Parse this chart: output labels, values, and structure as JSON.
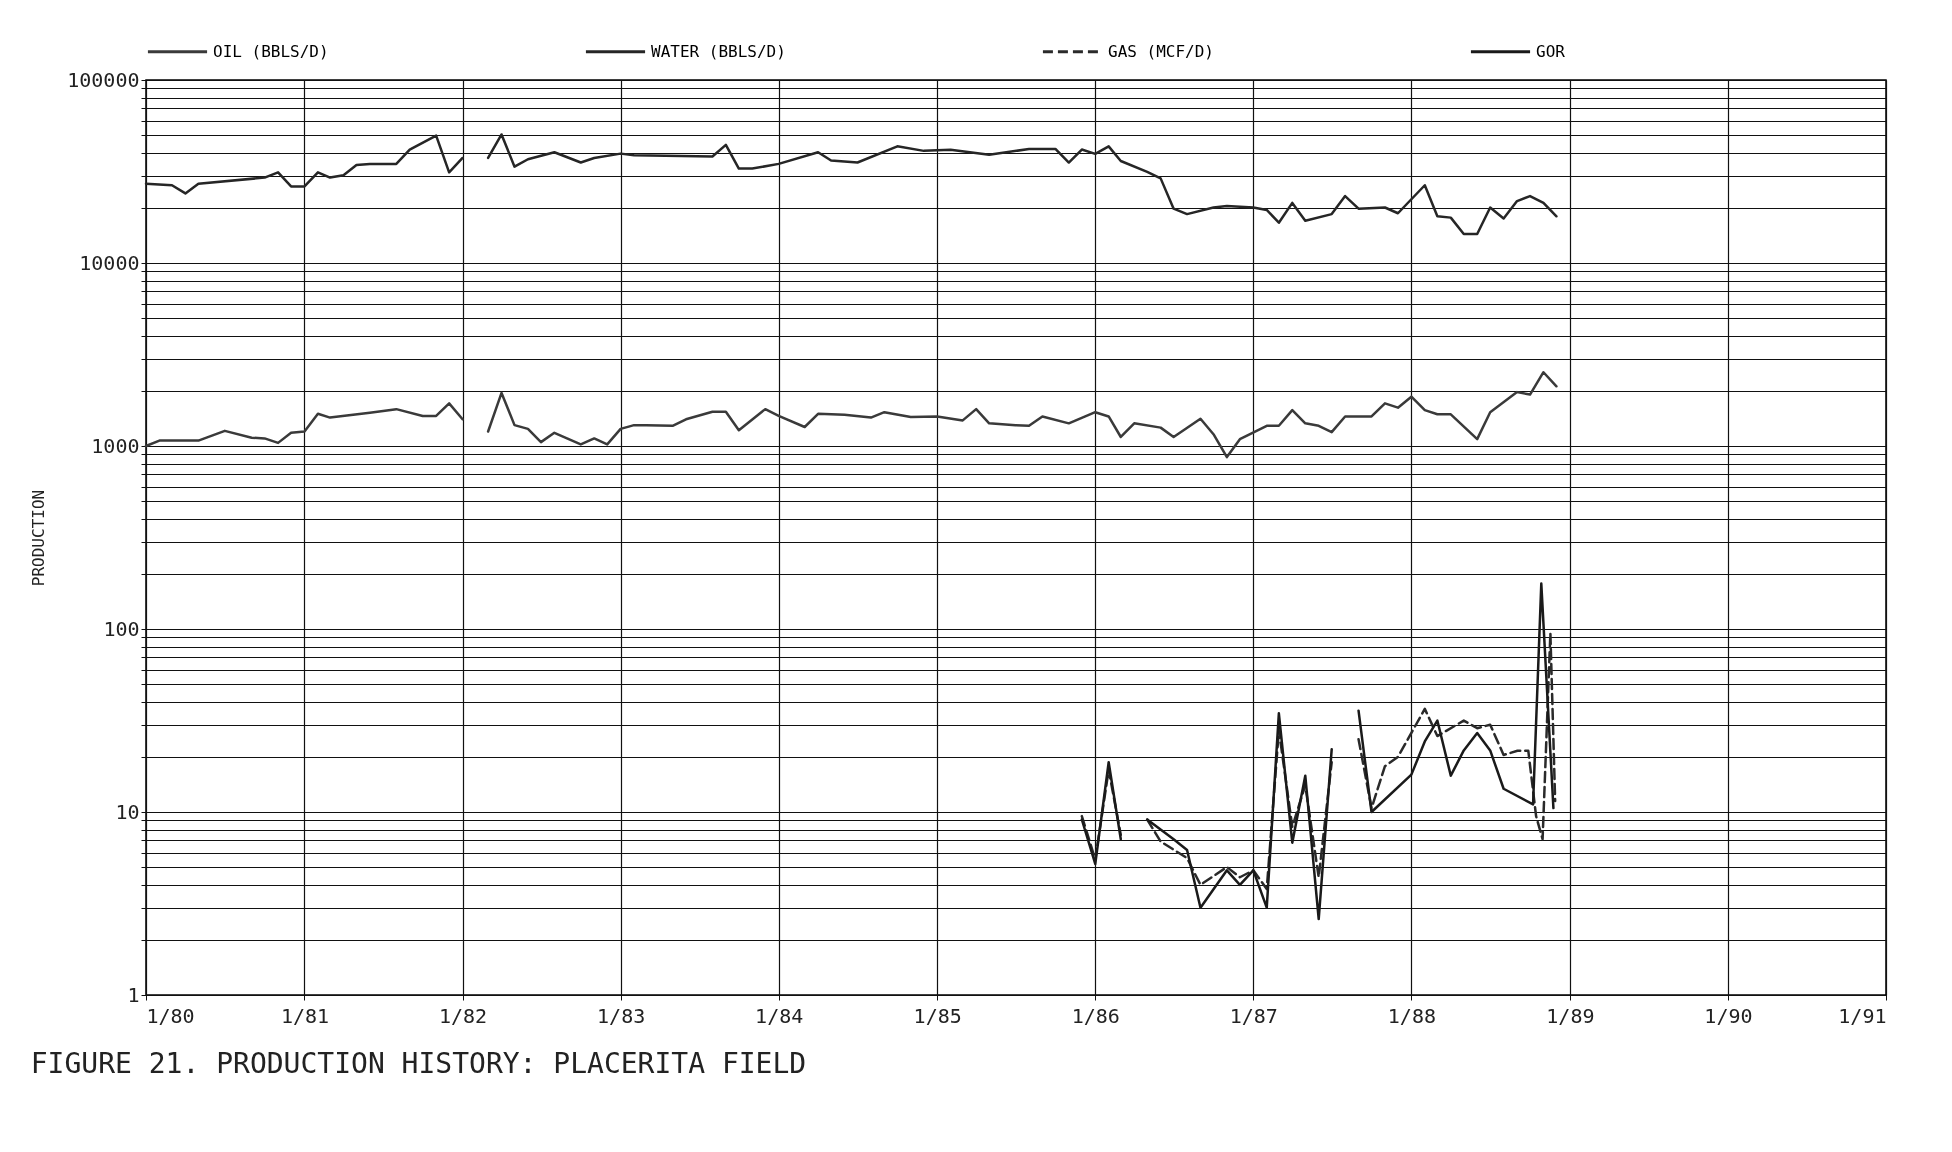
{
  "chart_data": {
    "type": "line",
    "title": "FIGURE 21.  PRODUCTION HISTORY:  PLACERITA FIELD",
    "ylabel": "PRODUCTION",
    "log": true,
    "grid": true,
    "legend": "top",
    "xlim": [
      "1980-01",
      "1991-01"
    ],
    "ylim": [
      1,
      100000
    ],
    "xticks": [
      {
        "value": "1980-01",
        "label": "1/80"
      },
      {
        "value": "1981-01",
        "label": "1/81"
      },
      {
        "value": "1982-01",
        "label": "1/82"
      },
      {
        "value": "1983-01",
        "label": "1/83"
      },
      {
        "value": "1984-01",
        "label": "1/84"
      },
      {
        "value": "1985-01",
        "label": "1/85"
      },
      {
        "value": "1986-01",
        "label": "1/86"
      },
      {
        "value": "1987-01",
        "label": "1/87"
      },
      {
        "value": "1988-01",
        "label": "1/88"
      },
      {
        "value": "1989-01",
        "label": "1/89"
      },
      {
        "value": "1990-01",
        "label": "1/90"
      },
      {
        "value": "1991-01",
        "label": "1/91"
      }
    ],
    "yticks": [
      1,
      {
        "value": 2,
        "label": null
      },
      {
        "value": 3,
        "label": null
      },
      {
        "value": 4,
        "label": null
      },
      {
        "value": 5,
        "label": null
      },
      {
        "value": 6,
        "label": null
      },
      {
        "value": 7,
        "label": null
      },
      {
        "value": 8,
        "label": null
      },
      {
        "value": 9,
        "label": null
      },
      10,
      {
        "value": 20,
        "label": null
      },
      {
        "value": 30,
        "label": null
      },
      {
        "value": 40,
        "label": null
      },
      {
        "value": 50,
        "label": null
      },
      {
        "value": 60,
        "label": null
      },
      {
        "value": 70,
        "label": null
      },
      {
        "value": 80,
        "label": null
      },
      {
        "value": 90,
        "label": null
      },
      100,
      {
        "value": 200,
        "label": null
      },
      {
        "value": 300,
        "label": null
      },
      {
        "value": 400,
        "label": null
      },
      {
        "value": 500,
        "label": null
      },
      {
        "value": 600,
        "label": null
      },
      {
        "value": 700,
        "label": null
      },
      {
        "value": 800,
        "label": null
      },
      {
        "value": 900,
        "label": null
      },
      1000,
      {
        "value": 2000,
        "label": null
      },
      {
        "value": 3000,
        "label": null
      },
      {
        "value": 4000,
        "label": null
      },
      {
        "value": 5000,
        "label": null
      },
      {
        "value": 6000,
        "label": null
      },
      {
        "value": 7000,
        "label": null
      },
      {
        "value": 8000,
        "label": null
      },
      {
        "value": 9000,
        "label": null
      },
      10000,
      {
        "value": 20000,
        "label": null
      },
      {
        "value": 30000,
        "label": null
      },
      {
        "value": 40000,
        "label": null
      },
      {
        "value": 50000,
        "label": null
      },
      {
        "value": 60000,
        "label": null
      },
      {
        "value": 70000,
        "label": null
      },
      {
        "value": 80000,
        "label": null
      },
      {
        "value": 90000,
        "label": null
      },
      100000
    ],
    "series": [
      {
        "name": "OIL (BBLS/D)",
        "color": "#3a3a3a",
        "line_style": "solid",
        "x": [
          "1980-01",
          "1980-02",
          "1980-05",
          "1980-07",
          "1980-09",
          "1980-10",
          "1980-11",
          "1980-12",
          "1981-01",
          "1981-02",
          "1981-03",
          "1981-06",
          "1981-08",
          "1981-10",
          "1981-11",
          "1981-12",
          "1982-01",
          "1982-02",
          "1982-03",
          "1982-04",
          "1982-05",
          "1982-06",
          "1982-07",
          "1982-08",
          "1982-10",
          "1982-11",
          "1982-12",
          "1983-01",
          "1983-02",
          "1983-03",
          "1983-05",
          "1983-06",
          "1983-08",
          "1983-09",
          "1983-10",
          "1983-12",
          "1984-01",
          "1984-03",
          "1984-04",
          "1984-06",
          "1984-08",
          "1984-09",
          "1984-11",
          "1985-01",
          "1985-03",
          "1985-04",
          "1985-05",
          "1985-07",
          "1985-08",
          "1985-09",
          "1985-11",
          "1986-01",
          "1986-02",
          "1986-03",
          "1986-04",
          "1986-06",
          "1986-07",
          "1986-09",
          "1986-10",
          "1986-11",
          "1986-12",
          "1987-02",
          "1987-03",
          "1987-04",
          "1987-05",
          "1987-06",
          "1987-07",
          "1987-08",
          "1987-10",
          "1987-11",
          "1987-12",
          "1988-01",
          "1988-02",
          "1988-03",
          "1988-04",
          "1988-06",
          "1988-07",
          "1988-09",
          "1988-10",
          "1988-11",
          "1988-12"
        ],
        "values": [
          1000,
          1070,
          1070,
          1210,
          1110,
          1100,
          1040,
          1180,
          1200,
          1500,
          1430,
          1520,
          1590,
          1460,
          1460,
          1710,
          1400,
          null,
          1200,
          1950,
          1300,
          1240,
          1050,
          1180,
          1020,
          1100,
          1020,
          1240,
          1300,
          1300,
          1290,
          1400,
          1540,
          1540,
          1220,
          1590,
          1460,
          1270,
          1500,
          1480,
          1430,
          1530,
          1440,
          1450,
          1380,
          1590,
          1330,
          1300,
          1290,
          1450,
          1330,
          1530,
          1450,
          1120,
          1330,
          1260,
          1120,
          1410,
          1160,
          870,
          1090,
          1290,
          1290,
          1570,
          1330,
          1290,
          1190,
          1450,
          1450,
          1710,
          1620,
          1860,
          1570,
          1490,
          1490,
          1090,
          1530,
          1970,
          1910,
          2530,
          2120
        ]
      },
      {
        "name": "WATER (BBLS/D)",
        "color": "#262626",
        "line_style": "solid",
        "x": [
          "1980-01",
          "1980-03",
          "1980-04",
          "1980-05",
          "1980-10",
          "1980-11",
          "1980-12",
          "1981-01",
          "1981-02",
          "1981-03",
          "1981-04",
          "1981-05",
          "1981-06",
          "1981-08",
          "1981-09",
          "1981-11",
          "1981-12",
          "1982-01",
          "1982-02",
          "1982-03",
          "1982-04",
          "1982-05",
          "1982-06",
          "1982-08",
          "1982-10",
          "1982-11",
          "1983-01",
          "1983-02",
          "1983-08",
          "1983-09",
          "1983-10",
          "1983-11",
          "1984-01",
          "1984-04",
          "1984-05",
          "1984-07",
          "1984-10",
          "1984-12",
          "1985-02",
          "1985-05",
          "1985-08",
          "1985-10",
          "1985-11",
          "1985-12",
          "1986-01",
          "1986-02",
          "1986-03",
          "1986-05",
          "1986-06",
          "1986-07",
          "1986-08",
          "1986-10",
          "1986-11",
          "1987-01",
          "1987-02",
          "1987-03",
          "1987-04",
          "1987-05",
          "1987-07",
          "1987-08",
          "1987-09",
          "1987-11",
          "1987-12",
          "1988-02",
          "1988-03",
          "1988-04",
          "1988-05",
          "1988-06",
          "1988-07",
          "1988-08",
          "1988-09",
          "1988-10",
          "1988-11",
          "1988-12"
        ],
        "values": [
          27100,
          26600,
          24000,
          27100,
          29300,
          31300,
          26200,
          26200,
          31300,
          29300,
          30200,
          34300,
          34800,
          34800,
          41600,
          49700,
          31300,
          37500,
          null,
          37500,
          50400,
          33600,
          36900,
          40300,
          35400,
          37500,
          39600,
          38800,
          38200,
          44200,
          32800,
          32800,
          34800,
          40300,
          36300,
          35400,
          43400,
          41000,
          41600,
          39000,
          42000,
          42000,
          35400,
          41700,
          39500,
          43400,
          36100,
          31500,
          29000,
          19800,
          18500,
          20100,
          20500,
          20100,
          19500,
          16600,
          21300,
          17000,
          18500,
          23200,
          19800,
          20100,
          18700,
          26600,
          18000,
          17700,
          14400,
          14400,
          20100,
          17500,
          21800,
          23200,
          21300,
          18000
        ]
      },
      {
        "name": "GAS (MCF/D)",
        "color": "#2a2a2a",
        "line_style": "dashed",
        "x": [
          "1985-12",
          "1986-01",
          "1986-02",
          "1986-03",
          "1986-04",
          "1986-05",
          "1986-06",
          "1986-08",
          "1986-09",
          "1986-11",
          "1986-12",
          "1987-01",
          "1987-02",
          "1987-03",
          "1987-04",
          "1987-05",
          "1987-06",
          "1987-07",
          "1987-08",
          "1987-09",
          "1987-10",
          "1987-11",
          "1987-12",
          "1988-02",
          "1988-03",
          "1988-05",
          "1988-06",
          "1988-07",
          "1988-08",
          "1988-09-02",
          "1988-09-27",
          "1988-10-15",
          "1988-10-30",
          "1988-11-17",
          "1988-11-28"
        ],
        "values": [
          9.5,
          5.5,
          17,
          7.5,
          null,
          9.1,
          6.9,
          5.6,
          4.0,
          5.0,
          4.4,
          4.8,
          3.8,
          28,
          8.3,
          14,
          4.4,
          18.7,
          null,
          25,
          10.5,
          17.8,
          20,
          36.6,
          26,
          31.6,
          28.7,
          30,
          20.5,
          21.6,
          21.6,
          9.5,
          7.1,
          95,
          11.5
        ]
      },
      {
        "name": "GOR",
        "color": "#1a1a1a",
        "line_style": "solid",
        "x": [
          "1985-12",
          "1986-01",
          "1986-02",
          "1986-03",
          "1986-04",
          "1986-05",
          "1986-07",
          "1986-08",
          "1986-09",
          "1986-11",
          "1986-12",
          "1987-01",
          "1987-02",
          "1987-03",
          "1987-04",
          "1987-05",
          "1987-06",
          "1987-07",
          "1987-08",
          "1987-09",
          "1987-10",
          "1988-01",
          "1988-02",
          "1988-03",
          "1988-04",
          "1988-05",
          "1988-06",
          "1988-07",
          "1988-08",
          "1988-10-08",
          "1988-10-27",
          "1988-11-24"
        ],
        "values": [
          9.1,
          5.2,
          18.7,
          7.1,
          null,
          9.1,
          7.1,
          6.2,
          3.0,
          4.8,
          4.0,
          4.8,
          3.0,
          34.6,
          6.8,
          15.8,
          2.6,
          22,
          null,
          35.8,
          10,
          16,
          24.3,
          31.6,
          15.8,
          21.7,
          27,
          21.7,
          13.4,
          11,
          177,
          10.5
        ]
      }
    ]
  }
}
